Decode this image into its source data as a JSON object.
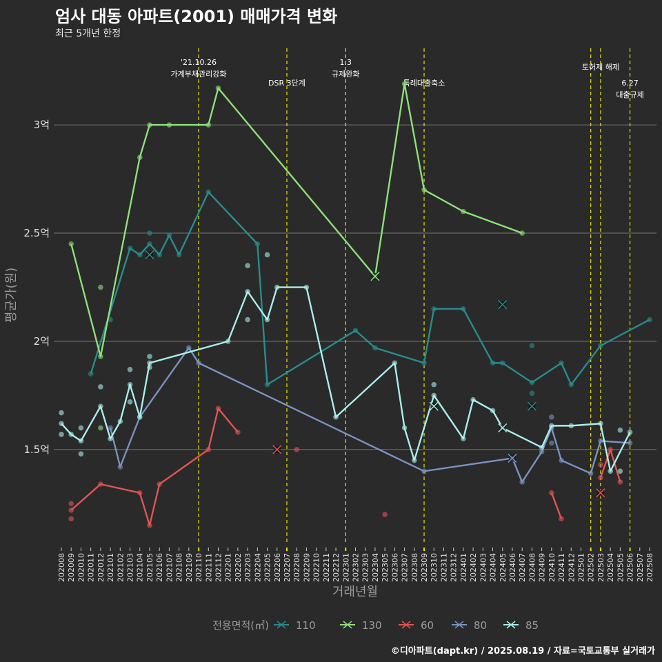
{
  "title": "엄사 대동 아파트(2001) 매매가격 변화",
  "subtitle": "최근 5개년 한정",
  "footer": "©디아파트(dapt.kr) / 2025.08.19 / 자료=국토교통부 실거래가",
  "chart_data": {
    "type": "line",
    "xlabel": "거래년월",
    "ylabel": "평균가(원)",
    "ylim": [
      1.06,
      3.37
    ],
    "yunit": "억",
    "yticks": [
      {
        "v": 1.5,
        "label": "1.5억"
      },
      {
        "v": 2,
        "label": "2억"
      },
      {
        "v": 2.5,
        "label": "2.5억"
      },
      {
        "v": 3,
        "label": "3억"
      }
    ],
    "categories": [
      "202008",
      "202009",
      "202010",
      "202011",
      "202012",
      "202101",
      "202102",
      "202103",
      "202104",
      "202105",
      "202106",
      "202107",
      "202108",
      "202109",
      "202110",
      "202111",
      "202112",
      "202201",
      "202202",
      "202203",
      "202204",
      "202205",
      "202206",
      "202207",
      "202208",
      "202209",
      "202210",
      "202211",
      "202212",
      "202301",
      "202302",
      "202303",
      "202304",
      "202305",
      "202306",
      "202307",
      "202308",
      "202309",
      "202310",
      "202311",
      "202312",
      "202401",
      "202402",
      "202403",
      "202404",
      "202405",
      "202406",
      "202407",
      "202408",
      "202409",
      "202410",
      "202411",
      "202412",
      "202501",
      "202502",
      "202503",
      "202504",
      "202505",
      "202506",
      "202507",
      "202508"
    ],
    "legend": {
      "title": "전용면적(㎡)",
      "position": "bottom"
    },
    "events": [
      {
        "x": "202110",
        "lines": [
          "'21.10.26",
          "가계부채관리강화"
        ],
        "level": "high"
      },
      {
        "x": "202207",
        "lines": [
          "DSR 3단계"
        ],
        "level": "low"
      },
      {
        "x": "202301",
        "lines": [
          "1.3",
          "규제완화"
        ],
        "level": "high"
      },
      {
        "x": "202309",
        "lines": [
          "특례대출축소"
        ],
        "level": "low"
      },
      {
        "x": "202502",
        "lines": [],
        "level": "none"
      },
      {
        "x": "202503",
        "lines": [
          "토허제 해제"
        ],
        "level": "mid"
      },
      {
        "x": "202506",
        "lines": [
          "6.27",
          "대출규제"
        ],
        "level": "lowest"
      }
    ],
    "series": [
      {
        "name": "110",
        "color": "#2a8c8c",
        "segments": [
          [
            [
              "202011",
              1.85
            ],
            [
              "202103",
              2.43
            ],
            [
              "202104",
              2.4
            ],
            [
              "202105",
              2.45
            ],
            [
              "202106",
              2.4
            ],
            [
              "202107",
              2.49
            ],
            [
              "202108",
              2.4
            ],
            [
              "202111",
              2.69
            ],
            [
              "202204",
              2.45
            ],
            [
              "202205",
              1.8
            ],
            [
              "202302",
              2.05
            ],
            [
              "202304",
              1.97
            ],
            [
              "202309",
              1.9
            ],
            [
              "202310",
              2.15
            ],
            [
              "202401",
              2.15
            ],
            [
              "202404",
              1.9
            ],
            [
              "202405",
              1.9
            ],
            [
              "202408",
              1.81
            ],
            [
              "202411",
              1.9
            ],
            [
              "202412",
              1.8
            ],
            [
              "202503",
              1.98
            ],
            [
              "202508",
              2.1
            ]
          ]
        ],
        "dots": [
          [
            "202101",
            2.1
          ],
          [
            "202105",
            2.5
          ],
          [
            "202408",
            1.98
          ],
          [
            "202408",
            1.76
          ]
        ],
        "crosses": [
          [
            "202105",
            2.4
          ],
          [
            "202405",
            2.17
          ],
          [
            "202408",
            1.7
          ]
        ]
      },
      {
        "name": "130",
        "color": "#8ee07a",
        "segments": [
          [
            [
              "202009",
              2.45
            ],
            [
              "202012",
              1.93
            ],
            [
              "202104",
              2.85
            ],
            [
              "202105",
              3.0
            ],
            [
              "202107",
              3.0
            ],
            [
              "202111",
              3.0
            ],
            [
              "202112",
              3.17
            ],
            [
              "202304",
              2.3
            ],
            [
              "202307",
              3.19
            ],
            [
              "202309",
              2.7
            ],
            [
              "202401",
              2.6
            ],
            [
              "202407",
              2.5
            ]
          ]
        ],
        "dots": [
          [
            "202012",
            2.25
          ],
          [
            "202012",
            1.6
          ]
        ],
        "crosses": [
          [
            "202304",
            2.3
          ]
        ]
      },
      {
        "name": "60",
        "color": "#e05555",
        "segments": [
          [
            [
              "202009",
              1.22
            ],
            [
              "202012",
              1.34
            ],
            [
              "202104",
              1.3
            ],
            [
              "202105",
              1.15
            ],
            [
              "202106",
              1.34
            ],
            [
              "202111",
              1.5
            ],
            [
              "202112",
              1.69
            ],
            [
              "202202",
              1.58
            ]
          ],
          [
            [
              "202410",
              1.3
            ],
            [
              "202411",
              1.18
            ]
          ],
          [
            [
              "202503",
              1.37
            ],
            [
              "202504",
              1.5
            ],
            [
              "202505",
              1.35
            ]
          ]
        ],
        "dots": [
          [
            "202009",
            1.25
          ],
          [
            "202009",
            1.18
          ],
          [
            "202208",
            1.5
          ],
          [
            "202305",
            1.2
          ],
          [
            "202503",
            1.43
          ]
        ],
        "crosses": [
          [
            "202206",
            1.5
          ],
          [
            "202503",
            1.3
          ]
        ]
      },
      {
        "name": "80",
        "color": "#7b93c0",
        "segments": [
          [
            [
              "202101",
              1.6
            ],
            [
              "202102",
              1.42
            ],
            [
              "202104",
              1.65
            ],
            [
              "202109",
              1.97
            ],
            [
              "202110",
              1.9
            ],
            [
              "202309",
              1.4
            ],
            [
              "202406",
              1.46
            ],
            [
              "202407",
              1.35
            ],
            [
              "202409",
              1.49
            ],
            [
              "202410",
              1.6
            ],
            [
              "202411",
              1.45
            ],
            [
              "202502",
              1.39
            ],
            [
              "202503",
              1.54
            ],
            [
              "202506",
              1.53
            ]
          ]
        ],
        "dots": [
          [
            "202410",
            1.65
          ],
          [
            "202410",
            1.53
          ]
        ],
        "crosses": [
          [
            "202406",
            1.46
          ]
        ]
      },
      {
        "name": "85",
        "color": "#aaeeea",
        "segments": [
          [
            [
              "202008",
              1.62
            ],
            [
              "202009",
              1.57
            ],
            [
              "202010",
              1.54
            ],
            [
              "202012",
              1.7
            ],
            [
              "202101",
              1.55
            ],
            [
              "202102",
              1.63
            ],
            [
              "202103",
              1.8
            ],
            [
              "202104",
              1.65
            ],
            [
              "202105",
              1.9
            ],
            [
              "202201",
              2.0
            ],
            [
              "202203",
              2.23
            ],
            [
              "202205",
              2.1
            ],
            [
              "202206",
              2.25
            ],
            [
              "202209",
              2.25
            ],
            [
              "202212",
              1.65
            ],
            [
              "202306",
              1.9
            ],
            [
              "202307",
              1.6
            ],
            [
              "202308",
              1.45
            ],
            [
              "202310",
              1.75
            ],
            [
              "202401",
              1.55
            ],
            [
              "202402",
              1.73
            ],
            [
              "202404",
              1.68
            ],
            [
              "202405",
              1.6
            ],
            [
              "202409",
              1.51
            ],
            [
              "202410",
              1.61
            ],
            [
              "202412",
              1.61
            ],
            [
              "202503",
              1.62
            ],
            [
              "202504",
              1.4
            ],
            [
              "202506",
              1.58
            ]
          ]
        ],
        "dots": [
          [
            "202008",
            1.67
          ],
          [
            "202008",
            1.57
          ],
          [
            "202010",
            1.6
          ],
          [
            "202010",
            1.48
          ],
          [
            "202012",
            1.79
          ],
          [
            "202103",
            1.87
          ],
          [
            "202103",
            1.72
          ],
          [
            "202105",
            1.93
          ],
          [
            "202105",
            1.88
          ],
          [
            "202203",
            2.35
          ],
          [
            "202203",
            2.1
          ],
          [
            "202205",
            2.4
          ],
          [
            "202310",
            1.8
          ],
          [
            "202505",
            1.59
          ],
          [
            "202505",
            1.4
          ]
        ],
        "crosses": [
          [
            "202310",
            1.7
          ],
          [
            "202405",
            1.6
          ]
        ]
      }
    ]
  }
}
